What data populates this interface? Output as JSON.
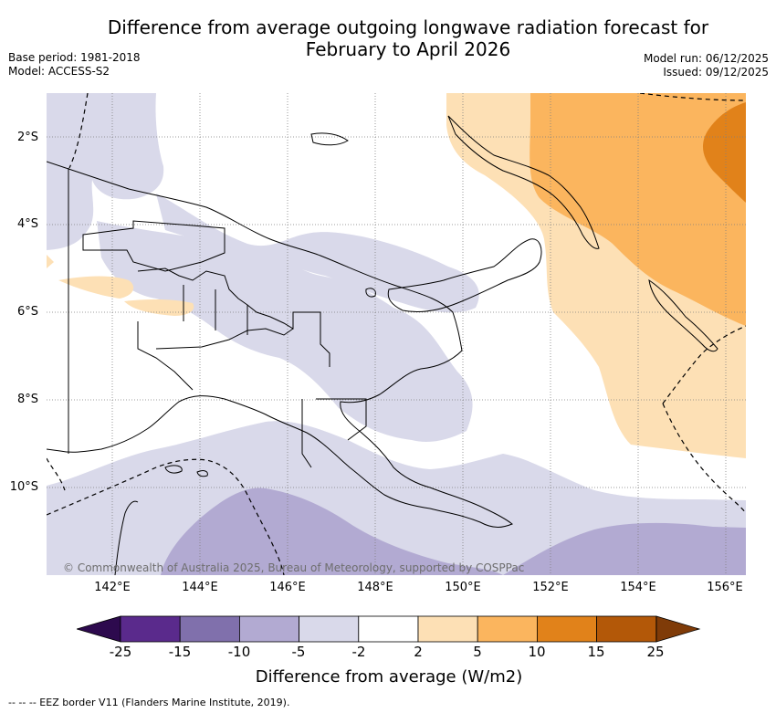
{
  "title": "Difference from average outgoing longwave radiation forecast for February to April 2026",
  "title_line1": "Difference from average outgoing longwave radiation forecast for",
  "title_line2": "February to April 2026",
  "meta": {
    "base_period": "Base period: 1981-2018",
    "model": "Model: ACCESS-S2",
    "model_run": "Model run: 06/12/2025",
    "issued": "Issued: 09/12/2025"
  },
  "map": {
    "lat_labels": [
      "2°S",
      "4°S",
      "6°S",
      "8°S",
      "10°S"
    ],
    "lon_labels": [
      "142°E",
      "144°E",
      "146°E",
      "148°E",
      "150°E",
      "152°E",
      "154°E",
      "156°E"
    ],
    "copyright": "© Commonwealth of Australia 2025, Bureau of Meteorology, supported by COSPPac"
  },
  "colorbar": {
    "ticks": [
      "-25",
      "-15",
      "-10",
      "-5",
      "-2",
      "2",
      "5",
      "10",
      "15",
      "25"
    ],
    "colors": [
      "#5a2a8c",
      "#8070ac",
      "#b2aad2",
      "#d9d9ea",
      "#ffffff",
      "#fde0b5",
      "#fbb55e",
      "#e1821a",
      "#b35808"
    ],
    "under_color": "#2d0a4e",
    "over_color": "#7f3b08",
    "label": "Difference from average (W/m2)"
  },
  "legend_note": "--  --  -- EEZ border V11 (Flanders Marine Institute, 2019)."
}
